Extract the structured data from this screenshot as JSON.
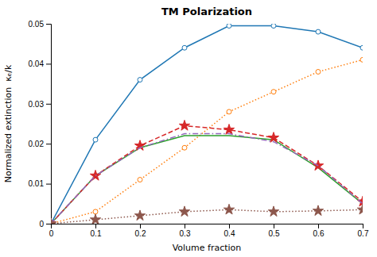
{
  "chart_data": {
    "type": "line",
    "title": "TM Polarization",
    "x_label": "Volume fraction",
    "y_label": "Normalized extinction  κₑ/k",
    "x": [
      0,
      0.1,
      0.2,
      0.3,
      0.4,
      0.5,
      0.6,
      0.7
    ],
    "series": [
      {
        "values": [
          0.0,
          0.021,
          0.036,
          0.044,
          0.0495,
          0.0495,
          0.048,
          0.044
        ],
        "line_style": "solid",
        "marker": "circle"
      },
      {
        "values": [
          0.0,
          0.003,
          0.011,
          0.019,
          0.028,
          0.033,
          0.038,
          0.041
        ],
        "line_style": "dotted",
        "marker": "circle"
      },
      {
        "values": [
          0.0,
          0.012,
          0.019,
          0.022,
          0.022,
          0.021,
          0.014,
          0.005
        ],
        "line_style": "solid"
      },
      {
        "values": [
          0.0,
          0.012,
          0.0195,
          0.0245,
          0.0235,
          0.0215,
          0.0145,
          0.0055
        ],
        "line_style": "dashed",
        "marker": "star"
      },
      {
        "values": [
          0.0,
          0.012,
          0.019,
          0.0225,
          0.0225,
          0.0205,
          0.0145,
          0.005
        ],
        "line_style": "dashdot"
      },
      {
        "values": [
          0.0,
          0.001,
          0.002,
          0.003,
          0.0035,
          0.003,
          0.0032,
          0.0035
        ],
        "line_style": "dotted",
        "marker": "star"
      }
    ],
    "xlim": [
      0,
      0.7
    ],
    "xticks": [
      0,
      0.1,
      0.2,
      0.3,
      0.4,
      0.5,
      0.6,
      0.7
    ],
    "ylim": [
      0,
      0.05
    ],
    "yticks": [
      0,
      0.01,
      0.02,
      0.03,
      0.04,
      0.05
    ],
    "grid": false
  }
}
